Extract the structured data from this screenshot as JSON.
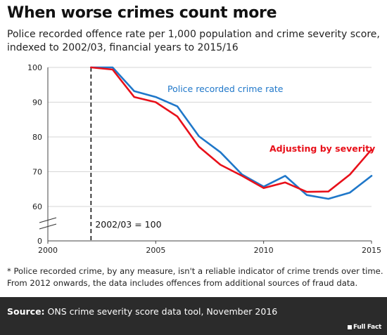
{
  "header": {
    "title": "When worse crimes count more",
    "subtitle": "Police recorded offence rate per 1,000 population and crime severity score, indexed to 2002/03, financial years to 2015/16"
  },
  "chart_data": {
    "type": "line",
    "xlim": [
      2000,
      2015
    ],
    "ylim": [
      0,
      100
    ],
    "x_ticks": [
      "2000",
      "2005",
      "2010",
      "2015"
    ],
    "y_ticks": [
      "0",
      "60",
      "70",
      "80",
      "90",
      "100"
    ],
    "broken_axis": true,
    "grid": "horizontal",
    "annotation": "2002/03 = 100",
    "baseline_x": 2002,
    "series": [
      {
        "name": "Police recorded crime rate",
        "color": "#1f77c9",
        "x": [
          2002,
          2003,
          2004,
          2005,
          2006,
          2007,
          2008,
          2009,
          2010,
          2011,
          2012,
          2013,
          2014,
          2015
        ],
        "values": [
          100,
          100,
          93.2,
          91.5,
          88.8,
          80.2,
          75.6,
          69.2,
          65.7,
          68.8,
          63.3,
          62.2,
          64.0,
          68.8
        ]
      },
      {
        "name": "Adjusting by severity",
        "color": "#e8101a",
        "x": [
          2002,
          2003,
          2004,
          2005,
          2006,
          2007,
          2008,
          2009,
          2010,
          2011,
          2012,
          2013,
          2014,
          2015
        ],
        "values": [
          100,
          99.4,
          91.5,
          90.0,
          85.9,
          77.2,
          72.0,
          68.8,
          65.3,
          66.9,
          64.2,
          64.3,
          69.2,
          76.4
        ]
      }
    ]
  },
  "footnote": {
    "line1": "* Police recorded crime, by any measure, isn't a reliable indicator of crime trends over time.",
    "line2": "From 2012 onwards, the data includes offences from additional sources of fraud data."
  },
  "footer": {
    "source_label": "Source:",
    "source_text": " ONS crime severity score data tool, November 2016",
    "logo_text": "Full Fact"
  }
}
